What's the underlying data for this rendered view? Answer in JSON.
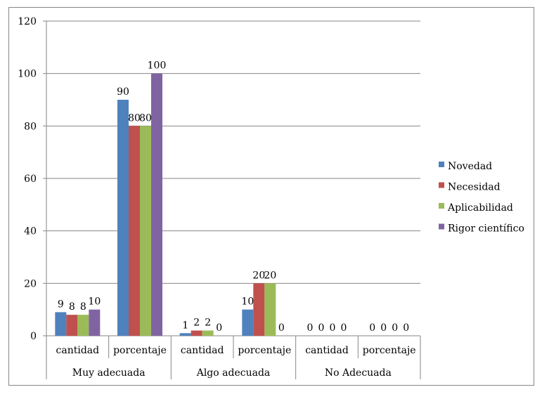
{
  "chart_data": {
    "type": "bar",
    "groups": [
      "Muy adecuada",
      "Algo adecuada",
      "No Adecuada"
    ],
    "categories": [
      "cantidad",
      "porcentaje",
      "cantidad",
      "porcentaje",
      "cantidad",
      "porcentaje"
    ],
    "series": [
      {
        "name": "Novedad",
        "color": "#4F81BD",
        "values": [
          9,
          90,
          1,
          10,
          0,
          0
        ]
      },
      {
        "name": "Necesidad",
        "color": "#C0504D",
        "values": [
          8,
          80,
          2,
          20,
          0,
          0
        ]
      },
      {
        "name": "Aplicabilidad",
        "color": "#9BBB59",
        "values": [
          8,
          80,
          2,
          20,
          0,
          0
        ]
      },
      {
        "name": "Rigor científico",
        "color": "#8064A2",
        "values": [
          10,
          100,
          0,
          0,
          0,
          0
        ]
      }
    ],
    "ylim": [
      0,
      120
    ],
    "yticks": [
      0,
      20,
      40,
      60,
      80,
      100,
      120
    ],
    "grid": true,
    "legend_position": "right",
    "title": "",
    "xlabel": "",
    "ylabel": ""
  }
}
